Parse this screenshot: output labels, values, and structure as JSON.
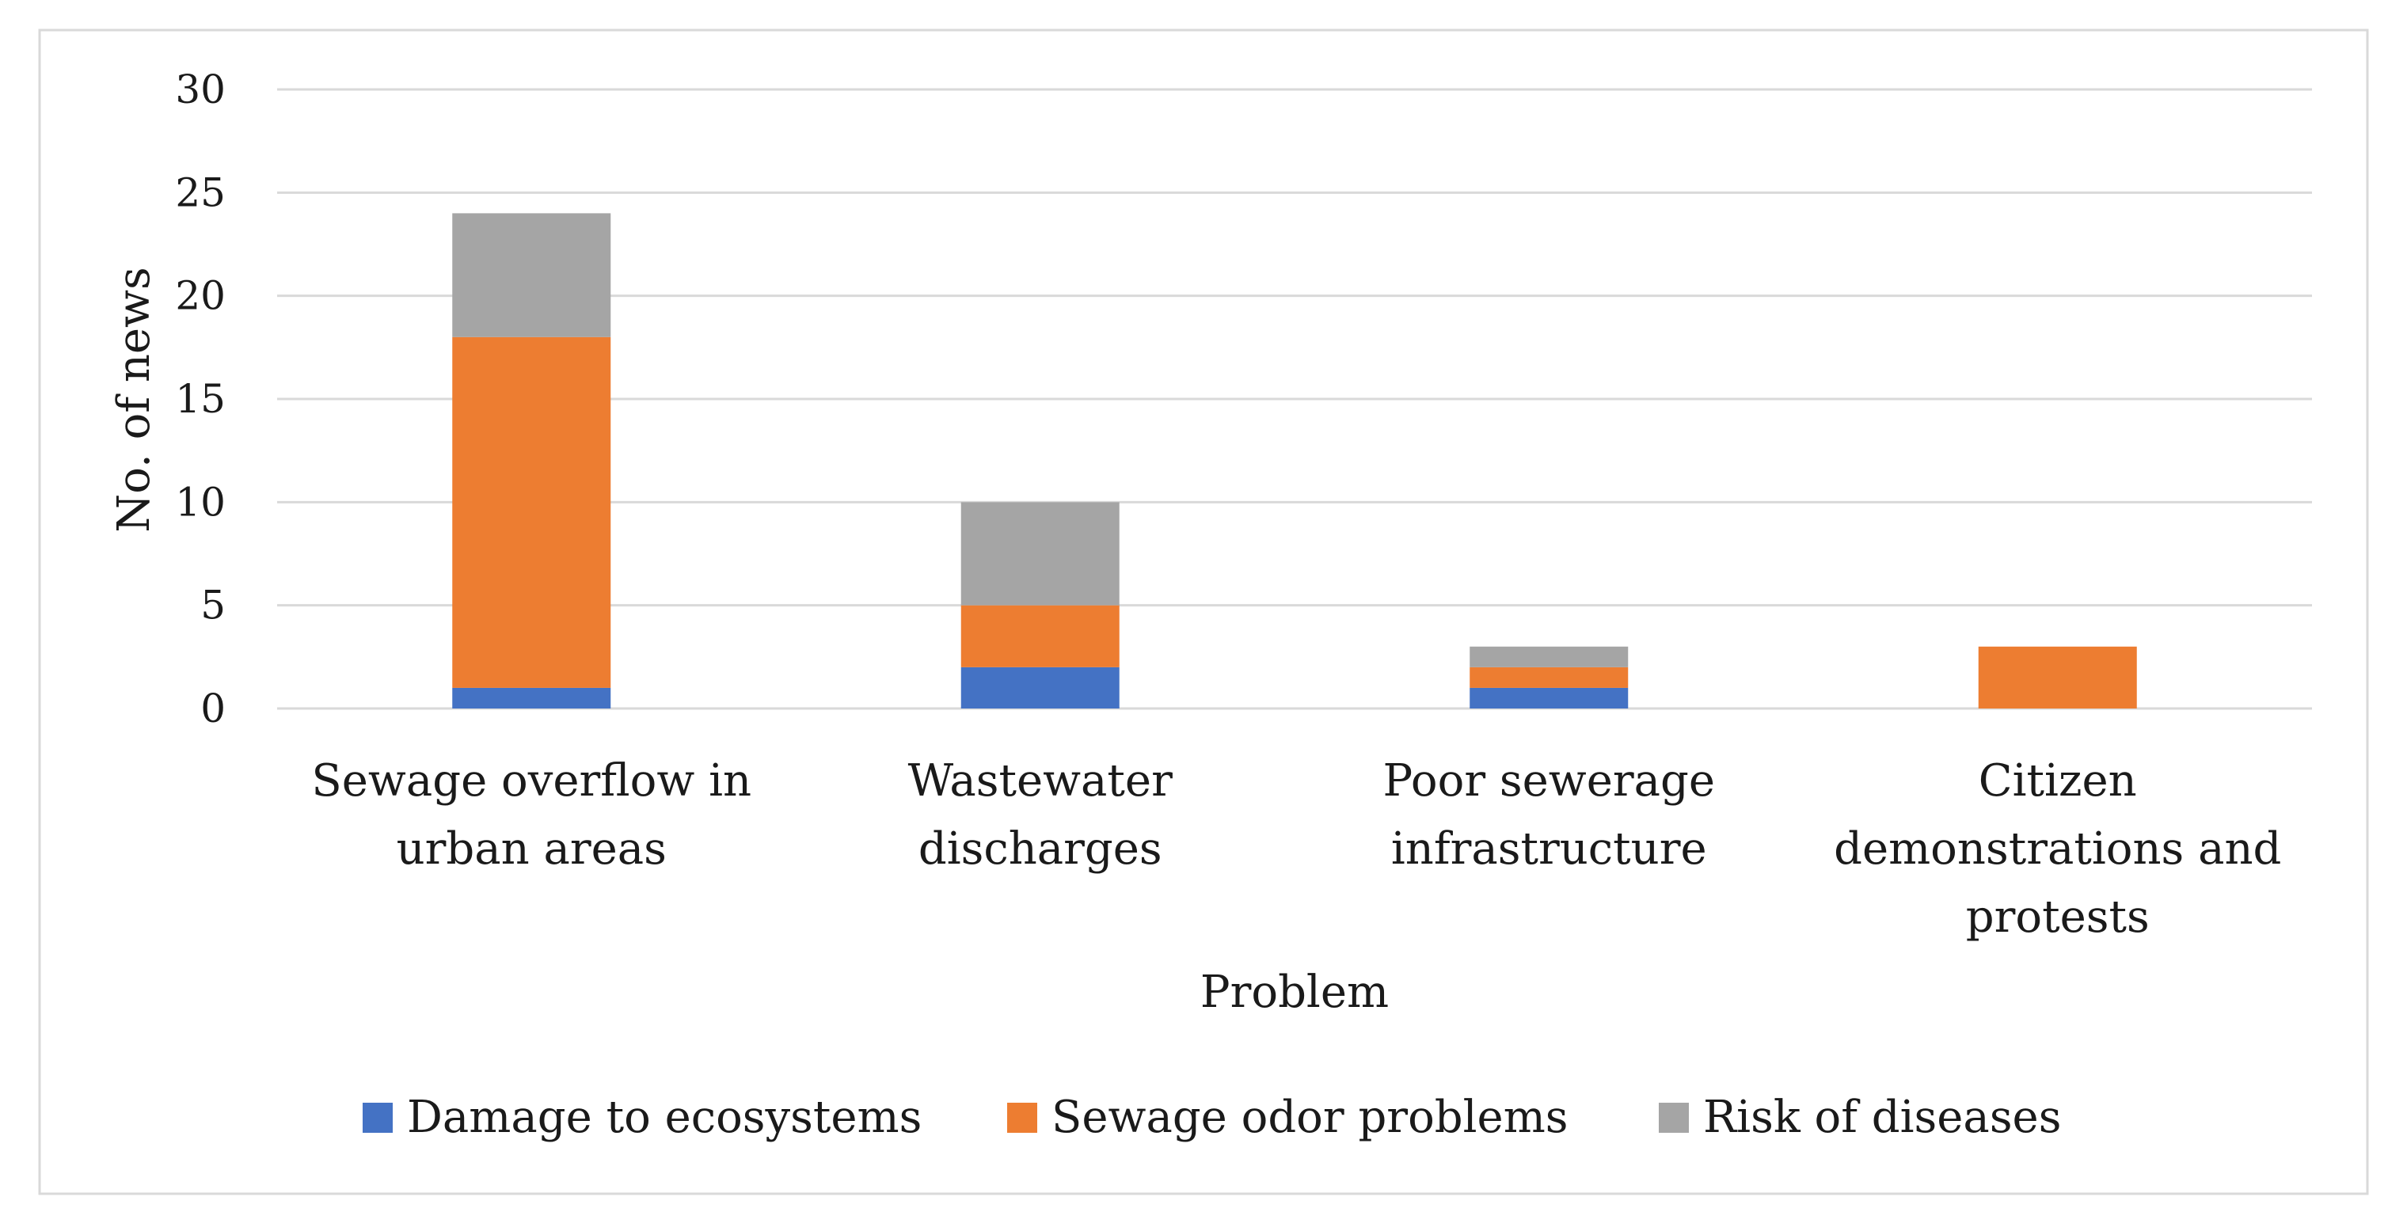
{
  "chart_data": {
    "type": "bar",
    "stacked": true,
    "categories": [
      [
        "Sewage overflow in",
        "urban areas"
      ],
      [
        "Wastewater",
        "discharges"
      ],
      [
        "Poor sewerage",
        "infrastructure"
      ],
      [
        "Citizen",
        "demonstrations and",
        "protests"
      ]
    ],
    "series": [
      {
        "name": "Damage to ecosystems",
        "color": "#4472C4",
        "values": [
          1,
          2,
          1,
          0
        ]
      },
      {
        "name": "Sewage odor problems",
        "color": "#ED7D31",
        "values": [
          17,
          3,
          1,
          3
        ]
      },
      {
        "name": "Risk of diseases",
        "color": "#A5A5A5",
        "values": [
          6,
          5,
          1,
          0
        ]
      }
    ],
    "title": "",
    "xlabel": "Problem",
    "ylabel": "No. of news",
    "ylim": [
      0,
      30
    ],
    "yticks": [
      0,
      5,
      10,
      15,
      20,
      25,
      30
    ],
    "grid": true,
    "legend": "bottom"
  }
}
